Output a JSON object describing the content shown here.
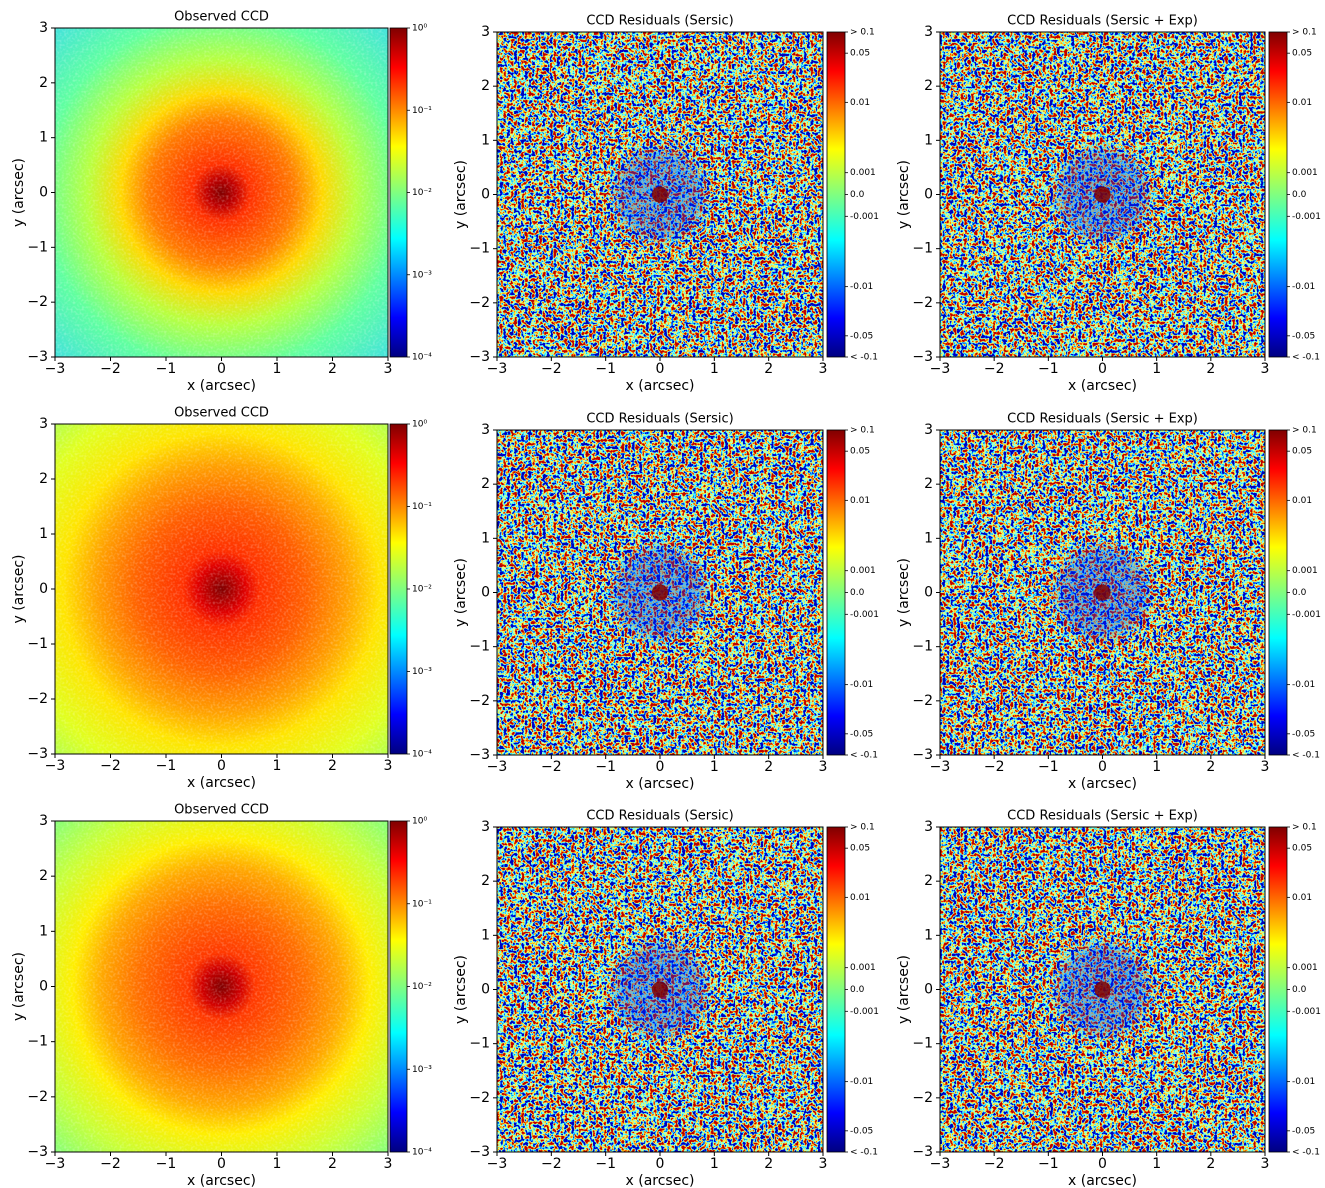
{
  "chart_data": [
    {
      "type": "image",
      "title": "Observed CCD",
      "xlabel": "x (arcsec)",
      "ylabel": "y (arcsec)",
      "xlim": [
        -3,
        3
      ],
      "ylim": [
        -3,
        3
      ],
      "xticks": [
        {
          "value": -3,
          "label": "−3"
        },
        {
          "value": -2,
          "label": "−2"
        },
        {
          "value": -1,
          "label": "−1"
        },
        0,
        1,
        2,
        3
      ],
      "yticks": [
        {
          "value": -3,
          "label": "−3"
        },
        {
          "value": -2,
          "label": "−2"
        },
        {
          "value": -1,
          "label": "−1"
        },
        0,
        1,
        2,
        3
      ],
      "colorbar": {
        "scale": "log",
        "clim": [
          0.0001,
          1
        ],
        "ticks": [
          {
            "value": 1,
            "label": "10⁰"
          },
          {
            "value": 0.1,
            "label": "10⁻¹"
          },
          {
            "value": 0.01,
            "label": "10⁻²"
          },
          {
            "value": 0.001,
            "label": "10⁻³"
          },
          {
            "value": 0.0001,
            "label": "10⁻⁴"
          }
        ]
      }
    },
    {
      "type": "image",
      "title": "CCD Residuals (Sersic)",
      "xlabel": "x (arcsec)",
      "ylabel": "y (arcsec)",
      "xlim": [
        -3,
        3
      ],
      "ylim": [
        -3,
        3
      ],
      "xticks": [
        {
          "value": -3,
          "label": "−3"
        },
        {
          "value": -2,
          "label": "−2"
        },
        {
          "value": -1,
          "label": "−1"
        },
        0,
        1,
        2,
        3
      ],
      "yticks": [
        {
          "value": -3,
          "label": "−3"
        },
        {
          "value": -2,
          "label": "−2"
        },
        {
          "value": -1,
          "label": "−1"
        },
        0,
        1,
        2,
        3
      ],
      "colorbar": {
        "scale": "symlog",
        "clim": [
          -0.1,
          0.1
        ],
        "linthresh": 0.001,
        "linscale": 0.31,
        "ticks": [
          {
            "value": 0.1,
            "label": "> 0.1"
          },
          0.05,
          0.01,
          0.001,
          {
            "value": 0,
            "label": "0.0"
          },
          -0.001,
          -0.01,
          -0.05,
          {
            "value": -0.1,
            "label": "< -0.1"
          }
        ]
      }
    },
    {
      "type": "image",
      "title": "CCD Residuals (Sersic + Exp)",
      "xlabel": "x (arcsec)",
      "ylabel": "y (arcsec)",
      "xlim": [
        -3,
        3
      ],
      "ylim": [
        -3,
        3
      ],
      "xticks": [
        {
          "value": -3,
          "label": "−3"
        },
        {
          "value": -2,
          "label": "−2"
        },
        {
          "value": -1,
          "label": "−1"
        },
        0,
        1,
        2,
        3
      ],
      "yticks": [
        {
          "value": -3,
          "label": "−3"
        },
        {
          "value": -2,
          "label": "−2"
        },
        {
          "value": -1,
          "label": "−1"
        },
        0,
        1,
        2,
        3
      ],
      "colorbar": {
        "scale": "symlog",
        "clim": [
          -0.1,
          0.1
        ],
        "linthresh": 0.001,
        "linscale": 0.31,
        "ticks": [
          {
            "value": 0.1,
            "label": "> 0.1"
          },
          0.05,
          0.01,
          0.001,
          {
            "value": 0,
            "label": "0.0"
          },
          -0.001,
          -0.01,
          -0.05,
          {
            "value": -0.1,
            "label": "< -0.1"
          }
        ]
      }
    },
    {
      "type": "image",
      "title": "Observed CCD",
      "xlabel": "x (arcsec)",
      "ylabel": "y (arcsec)",
      "xlim": [
        -3,
        3
      ],
      "ylim": [
        -3,
        3
      ],
      "xticks": [
        {
          "value": -3,
          "label": "−3"
        },
        {
          "value": -2,
          "label": "−2"
        },
        {
          "value": -1,
          "label": "−1"
        },
        0,
        1,
        2,
        3
      ],
      "yticks": [
        {
          "value": -3,
          "label": "−3"
        },
        {
          "value": -2,
          "label": "−2"
        },
        {
          "value": -1,
          "label": "−1"
        },
        0,
        1,
        2,
        3
      ],
      "colorbar": {
        "scale": "log",
        "clim": [
          0.0001,
          1
        ],
        "ticks": [
          {
            "value": 1,
            "label": "10⁰"
          },
          {
            "value": 0.1,
            "label": "10⁻¹"
          },
          {
            "value": 0.01,
            "label": "10⁻²"
          },
          {
            "value": 0.001,
            "label": "10⁻³"
          },
          {
            "value": 0.0001,
            "label": "10⁻⁴"
          }
        ]
      }
    },
    {
      "type": "image",
      "title": "CCD Residuals (Sersic)",
      "xlabel": "x (arcsec)",
      "ylabel": "y (arcsec)",
      "xlim": [
        -3,
        3
      ],
      "ylim": [
        -3,
        3
      ],
      "xticks": [
        {
          "value": -3,
          "label": "−3"
        },
        {
          "value": -2,
          "label": "−2"
        },
        {
          "value": -1,
          "label": "−1"
        },
        0,
        1,
        2,
        3
      ],
      "yticks": [
        {
          "value": -3,
          "label": "−3"
        },
        {
          "value": -2,
          "label": "−2"
        },
        {
          "value": -1,
          "label": "−1"
        },
        0,
        1,
        2,
        3
      ],
      "colorbar": {
        "scale": "symlog",
        "clim": [
          -0.1,
          0.1
        ],
        "linthresh": 0.001,
        "linscale": 0.31,
        "ticks": [
          {
            "value": 0.1,
            "label": "> 0.1"
          },
          0.05,
          0.01,
          0.001,
          {
            "value": 0,
            "label": "0.0"
          },
          -0.001,
          -0.01,
          -0.05,
          {
            "value": -0.1,
            "label": "< -0.1"
          }
        ]
      }
    },
    {
      "type": "image",
      "title": "CCD Residuals (Sersic + Exp)",
      "xlabel": "x (arcsec)",
      "ylabel": "y (arcsec)",
      "xlim": [
        -3,
        3
      ],
      "ylim": [
        -3,
        3
      ],
      "xticks": [
        {
          "value": -3,
          "label": "−3"
        },
        {
          "value": -2,
          "label": "−2"
        },
        {
          "value": -1,
          "label": "−1"
        },
        0,
        1,
        2,
        3
      ],
      "yticks": [
        {
          "value": -3,
          "label": "−3"
        },
        {
          "value": -2,
          "label": "−2"
        },
        {
          "value": -1,
          "label": "−1"
        },
        0,
        1,
        2,
        3
      ],
      "colorbar": {
        "scale": "symlog",
        "clim": [
          -0.1,
          0.1
        ],
        "linthresh": 0.001,
        "linscale": 0.31,
        "ticks": [
          {
            "value": 0.1,
            "label": "> 0.1"
          },
          0.05,
          0.01,
          0.001,
          {
            "value": 0,
            "label": "0.0"
          },
          -0.001,
          -0.01,
          -0.05,
          {
            "value": -0.1,
            "label": "< -0.1"
          }
        ]
      }
    },
    {
      "type": "image",
      "title": "Observed CCD",
      "xlabel": "x (arcsec)",
      "ylabel": "y (arcsec)",
      "xlim": [
        -3,
        3
      ],
      "ylim": [
        -3,
        3
      ],
      "xticks": [
        {
          "value": -3,
          "label": "−3"
        },
        {
          "value": -2,
          "label": "−2"
        },
        {
          "value": -1,
          "label": "−1"
        },
        0,
        1,
        2,
        3
      ],
      "yticks": [
        {
          "value": -3,
          "label": "−3"
        },
        {
          "value": -2,
          "label": "−2"
        },
        {
          "value": -1,
          "label": "−1"
        },
        0,
        1,
        2,
        3
      ],
      "colorbar": {
        "scale": "log",
        "clim": [
          0.0001,
          1
        ],
        "ticks": [
          {
            "value": 1,
            "label": "10⁰"
          },
          {
            "value": 0.1,
            "label": "10⁻¹"
          },
          {
            "value": 0.01,
            "label": "10⁻²"
          },
          {
            "value": 0.001,
            "label": "10⁻³"
          },
          {
            "value": 0.0001,
            "label": "10⁻⁴"
          }
        ]
      }
    },
    {
      "type": "image",
      "title": "CCD Residuals (Sersic)",
      "xlabel": "x (arcsec)",
      "ylabel": "y (arcsec)",
      "xlim": [
        -3,
        3
      ],
      "ylim": [
        -3,
        3
      ],
      "xticks": [
        {
          "value": -3,
          "label": "−3"
        },
        {
          "value": -2,
          "label": "−2"
        },
        {
          "value": -1,
          "label": "−1"
        },
        0,
        1,
        2,
        3
      ],
      "yticks": [
        {
          "value": -3,
          "label": "−3"
        },
        {
          "value": -2,
          "label": "−2"
        },
        {
          "value": -1,
          "label": "−1"
        },
        0,
        1,
        2,
        3
      ],
      "colorbar": {
        "scale": "symlog",
        "clim": [
          -0.1,
          0.1
        ],
        "linthresh": 0.001,
        "linscale": 0.31,
        "ticks": [
          {
            "value": 0.1,
            "label": "> 0.1"
          },
          0.05,
          0.01,
          0.001,
          {
            "value": 0,
            "label": "0.0"
          },
          -0.001,
          -0.01,
          -0.05,
          {
            "value": -0.1,
            "label": "< -0.1"
          }
        ]
      }
    },
    {
      "type": "image",
      "title": "CCD Residuals (Sersic + Exp)",
      "xlabel": "x (arcsec)",
      "ylabel": "y (arcsec)",
      "xlim": [
        -3,
        3
      ],
      "ylim": [
        -3,
        3
      ],
      "xticks": [
        {
          "value": -3,
          "label": "−3"
        },
        {
          "value": -2,
          "label": "−2"
        },
        {
          "value": -1,
          "label": "−1"
        },
        0,
        1,
        2,
        3
      ],
      "yticks": [
        {
          "value": -3,
          "label": "−3"
        },
        {
          "value": -2,
          "label": "−2"
        },
        {
          "value": -1,
          "label": "−1"
        },
        0,
        1,
        2,
        3
      ],
      "colorbar": {
        "scale": "symlog",
        "clim": [
          -0.1,
          0.1
        ],
        "linthresh": 0.001,
        "linscale": 0.31,
        "ticks": [
          {
            "value": 0.1,
            "label": "> 0.1"
          },
          0.05,
          0.01,
          0.001,
          {
            "value": 0,
            "label": "0.0"
          },
          -0.001,
          -0.01,
          -0.05,
          {
            "value": -0.1,
            "label": "< -0.1"
          }
        ]
      }
    }
  ]
}
